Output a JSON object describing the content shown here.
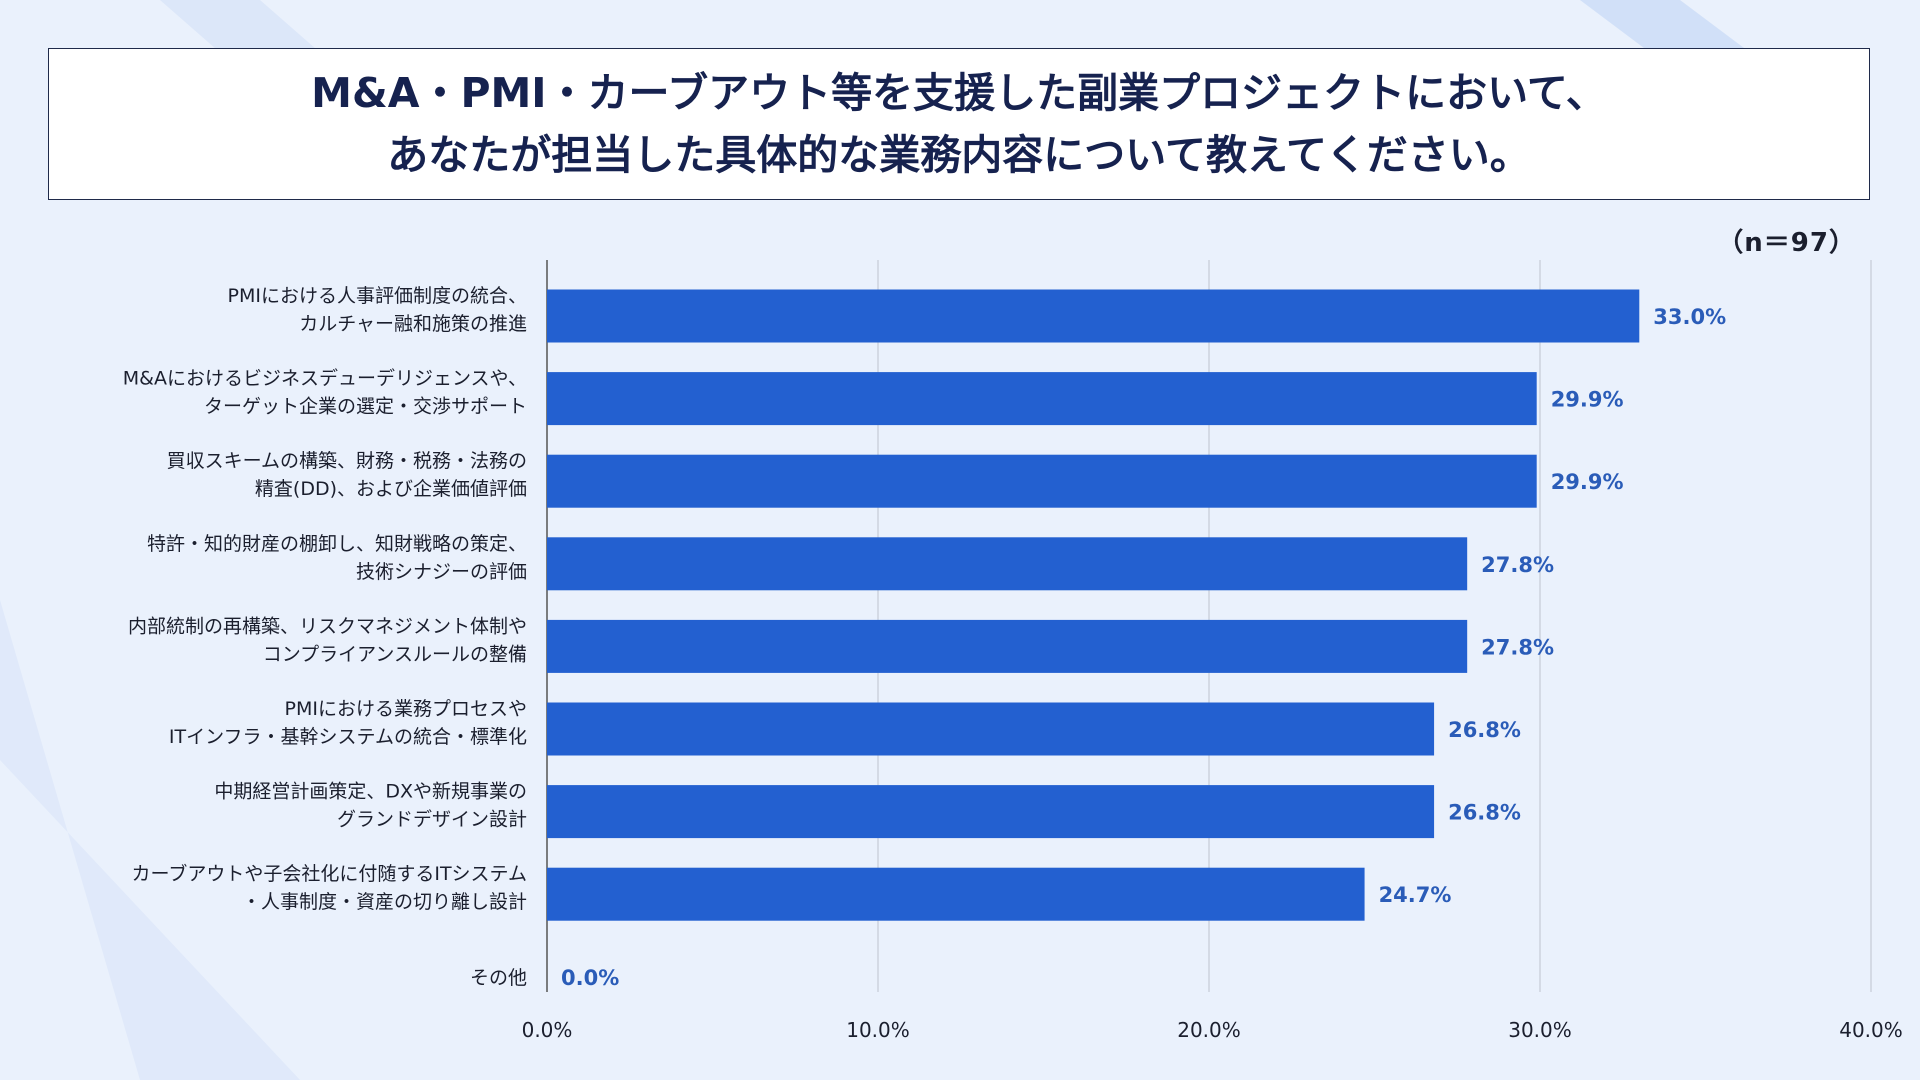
{
  "title": {
    "line1": "M&A・PMI・カーブアウト等を支援した副業プロジェクトにおいて、",
    "line2": "あなたが担当した具体的な業務内容について教えてください。"
  },
  "sample_size": "（n＝97）",
  "colors": {
    "bar": "#2360d0",
    "value_label": "#2a5cb8",
    "category_label": "#1b1f2e",
    "tick_label": "#1b1f2e",
    "grid": "#c5cbd6",
    "axis": "#555555",
    "background": "#eaf1fc"
  },
  "chart_data": {
    "type": "bar",
    "orientation": "horizontal",
    "categories": [
      [
        "PMIにおける人事評価制度の統合、",
        "カルチャー融和施策の推進"
      ],
      [
        "M&Aにおけるビジネスデューデリジェンスや、",
        "ターゲット企業の選定・交渉サポート"
      ],
      [
        "買収スキームの構築、財務・税務・法務の",
        "精査(DD)、および企業価値評価"
      ],
      [
        "特許・知的財産の棚卸し、知財戦略の策定、",
        "技術シナジーの評価"
      ],
      [
        "内部統制の再構築、リスクマネジメント体制や",
        "コンプライアンスルールの整備"
      ],
      [
        "PMIにおける業務プロセスや",
        "ITインフラ・基幹システムの統合・標準化"
      ],
      [
        "中期経営計画策定、DXや新規事業の",
        "グランドデザイン設計"
      ],
      [
        "カーブアウトや子会社化に付随するITシステム",
        "・人事制度・資産の切り離し設計"
      ],
      [
        "その他"
      ]
    ],
    "values": [
      33.0,
      29.9,
      29.9,
      27.8,
      27.8,
      26.8,
      26.8,
      24.7,
      0.0
    ],
    "value_labels": [
      "33.0%",
      "29.9%",
      "29.9%",
      "27.8%",
      "27.8%",
      "26.8%",
      "26.8%",
      "24.7%",
      "0.0%"
    ],
    "xlim": [
      0,
      40
    ],
    "x_ticks": [
      0,
      10,
      20,
      30,
      40
    ],
    "x_tick_labels": [
      "0.0%",
      "10.0%",
      "20.0%",
      "30.0%",
      "40.0%"
    ],
    "grid": true,
    "legend": "none"
  }
}
